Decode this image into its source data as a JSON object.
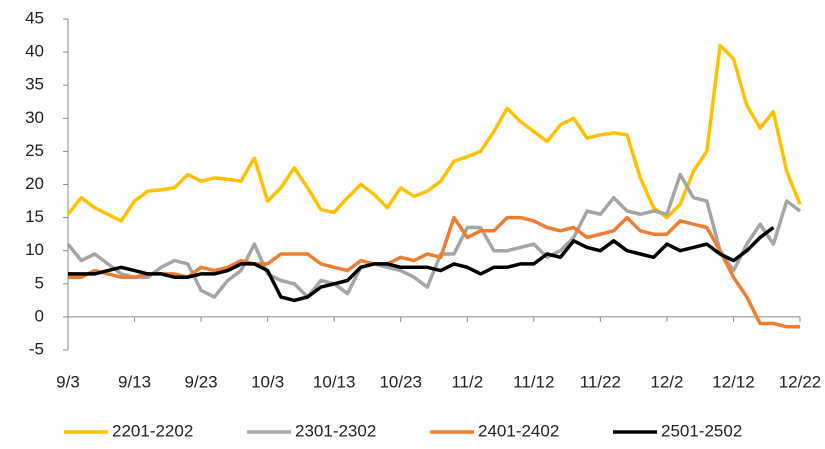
{
  "chart_data": {
    "type": "line",
    "x": [
      0,
      2,
      4,
      6,
      8,
      10,
      12,
      14,
      16,
      18,
      20,
      22,
      24,
      26,
      28,
      30,
      32,
      34,
      36,
      38,
      40,
      42,
      44,
      46,
      48,
      50,
      52,
      54,
      56,
      58,
      60,
      62,
      64,
      66,
      68,
      70,
      72,
      74,
      76,
      78,
      80,
      82,
      84,
      86,
      88,
      90,
      92,
      94,
      96,
      98,
      100,
      102,
      104,
      106,
      108,
      110
    ],
    "xlim": [
      0,
      110
    ],
    "xticks": [
      {
        "value": 0,
        "label": "9/3"
      },
      {
        "value": 10,
        "label": "9/13"
      },
      {
        "value": 20,
        "label": "9/23"
      },
      {
        "value": 30,
        "label": "10/3"
      },
      {
        "value": 40,
        "label": "10/13"
      },
      {
        "value": 50,
        "label": "10/23"
      },
      {
        "value": 60,
        "label": "11/2"
      },
      {
        "value": 70,
        "label": "11/12"
      },
      {
        "value": 80,
        "label": "11/22"
      },
      {
        "value": 90,
        "label": "12/2"
      },
      {
        "value": 100,
        "label": "12/12"
      },
      {
        "value": 110,
        "label": "12/22"
      }
    ],
    "ylim": [
      -5,
      45
    ],
    "yticks": [
      -5,
      0,
      5,
      10,
      15,
      20,
      25,
      30,
      35,
      40,
      45
    ],
    "grid": false,
    "legend": "bottom",
    "series": [
      {
        "name": "2201-2202",
        "color": "#FFC000",
        "values": [
          15.5,
          18,
          16.5,
          15.5,
          14.5,
          17.5,
          19,
          19.2,
          19.5,
          21.5,
          20.5,
          21,
          20.8,
          20.5,
          24,
          17.5,
          19.5,
          22.5,
          19.5,
          16.2,
          15.8,
          18,
          20,
          18.5,
          16.5,
          19.5,
          18.2,
          19,
          20.5,
          23.5,
          24.2,
          25,
          28,
          31.5,
          29.5,
          28,
          26.5,
          29,
          30,
          27,
          27.5,
          27.8,
          27.5,
          21,
          16.5,
          15,
          17,
          22,
          25,
          41,
          39,
          32,
          28.5,
          31,
          22,
          17
        ]
      },
      {
        "name": "2301-2302",
        "color": "#A5A5A5",
        "values": [
          11,
          8.5,
          9.5,
          8,
          6.5,
          6,
          6,
          7.5,
          8.5,
          8,
          4,
          3,
          5.5,
          7,
          11,
          6.5,
          5.5,
          5,
          3,
          5.5,
          5,
          3.5,
          7.5,
          8,
          7.5,
          7,
          6,
          4.5,
          9.5,
          9.5,
          13.5,
          13.5,
          10,
          10,
          10.5,
          11,
          9,
          10,
          12,
          16,
          15.5,
          18,
          16,
          15.5,
          16,
          15.5,
          21.5,
          18,
          17.5,
          10,
          7,
          11,
          14,
          11,
          17.5,
          16
        ]
      },
      {
        "name": "2401-2402",
        "color": "#ED7D31",
        "values": [
          6,
          6,
          7,
          6.5,
          6,
          6,
          6.5,
          6.5,
          6.5,
          6,
          7.5,
          7,
          7.5,
          8.5,
          8,
          8,
          9.5,
          9.5,
          9.5,
          8,
          7.5,
          7,
          8.5,
          8,
          8,
          9,
          8.5,
          9.5,
          9,
          15,
          12,
          13,
          13,
          15,
          15,
          14.5,
          13.5,
          13,
          13.5,
          12,
          12.5,
          13,
          15,
          13,
          12.5,
          12.5,
          14.5,
          14,
          13.5,
          10,
          6,
          3,
          -1,
          -1,
          -1.5,
          -1.5
        ]
      },
      {
        "name": "2501-2502",
        "color": "#000000",
        "values": [
          6.5,
          6.5,
          6.5,
          7,
          7.5,
          7,
          6.5,
          6.5,
          6,
          6,
          6.5,
          6.5,
          7,
          8,
          8,
          7,
          3,
          2.5,
          3,
          4.5,
          5,
          5.5,
          7.5,
          8,
          8,
          7.5,
          7.5,
          7.5,
          7,
          8,
          7.5,
          6.5,
          7.5,
          7.5,
          8,
          8,
          9.5,
          9,
          11.5,
          10.5,
          10,
          11.5,
          10,
          9.5,
          9,
          11,
          10,
          10.5,
          11,
          9.5,
          8.5,
          10,
          12,
          13.5,
          null,
          null
        ]
      }
    ]
  }
}
